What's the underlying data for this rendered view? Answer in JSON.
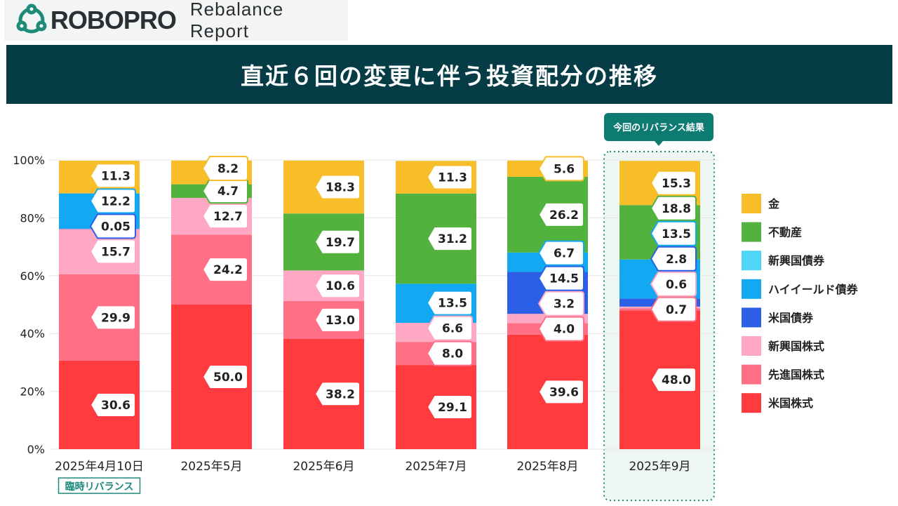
{
  "brand": {
    "name": "ROBOPRO",
    "subtitle": "Rebalance Report"
  },
  "title": "直近６回の変更に伴う投資配分の推移",
  "callout": "今回のリバランス結果",
  "note": "臨時リバランス",
  "colors": {
    "header_bg": "#063c45",
    "accent_teal": "#1d8a7a",
    "highlight_bg": "#eef6f1"
  },
  "chart_data": {
    "type": "bar",
    "stacked": true,
    "categories": [
      "2025年4月10日",
      "2025年5月",
      "2025年6月",
      "2025年7月",
      "2025年8月",
      "2025年9月"
    ],
    "ylim": [
      0,
      100
    ],
    "yticks": [
      "0%",
      "20%",
      "40%",
      "60%",
      "80%",
      "100%"
    ],
    "grid": true,
    "legend_position": "right",
    "series": [
      {
        "name": "米国株式",
        "color": "#ff3b3f",
        "values": [
          30.6,
          50.0,
          38.2,
          29.1,
          39.6,
          48.0
        ]
      },
      {
        "name": "先進国株式",
        "color": "#ff6f86",
        "values": [
          29.9,
          24.2,
          13.0,
          8.0,
          4.0,
          0.7
        ]
      },
      {
        "name": "新興国株式",
        "color": "#ffa8c3",
        "values": [
          15.7,
          12.7,
          10.6,
          6.6,
          3.2,
          0.6
        ]
      },
      {
        "name": "米国債券",
        "color": "#2a5fe6",
        "values": [
          0.05,
          0,
          0,
          0,
          14.5,
          2.8
        ]
      },
      {
        "name": "ハイイールド債券",
        "color": "#12a8f2",
        "values": [
          12.2,
          0,
          0,
          13.5,
          6.7,
          13.5
        ]
      },
      {
        "name": "新興国債券",
        "color": "#4fd6f7",
        "values": [
          0,
          0,
          0,
          0,
          0,
          0
        ]
      },
      {
        "name": "不動産",
        "color": "#52b23e",
        "values": [
          0,
          4.7,
          19.7,
          31.2,
          26.2,
          18.8
        ]
      },
      {
        "name": "金",
        "color": "#f7be2a",
        "values": [
          11.3,
          8.2,
          18.3,
          11.3,
          5.6,
          15.3
        ]
      }
    ],
    "legend_order": [
      "金",
      "不動産",
      "新興国債券",
      "ハイイールド債券",
      "米国債券",
      "新興国株式",
      "先進国株式",
      "米国株式"
    ],
    "labels": [
      [
        [
          "30.6",
          0
        ],
        [
          "29.9",
          1
        ],
        [
          "15.7",
          2
        ],
        [
          "0.05",
          3
        ],
        [
          "12.2",
          4
        ],
        [
          "11.3",
          7
        ]
      ],
      [
        [
          "50.0",
          0
        ],
        [
          "24.2",
          1
        ],
        [
          "12.7",
          2
        ],
        [
          "4.7",
          6
        ],
        [
          "8.2",
          7
        ]
      ],
      [
        [
          "38.2",
          0
        ],
        [
          "13.0",
          1
        ],
        [
          "10.6",
          2
        ],
        [
          "19.7",
          6
        ],
        [
          "18.3",
          7
        ]
      ],
      [
        [
          "29.1",
          0
        ],
        [
          "8.0",
          1
        ],
        [
          "6.6",
          2
        ],
        [
          "13.5",
          4
        ],
        [
          "31.2",
          6
        ],
        [
          "11.3",
          7
        ]
      ],
      [
        [
          "39.6",
          0
        ],
        [
          "4.0",
          1
        ],
        [
          "3.2",
          2
        ],
        [
          "14.5",
          3
        ],
        [
          "6.7",
          4
        ],
        [
          "26.2",
          6
        ],
        [
          "5.6",
          7
        ]
      ],
      [
        [
          "48.0",
          0
        ],
        [
          "0.7",
          1
        ],
        [
          "0.6",
          2
        ],
        [
          "2.8",
          3
        ],
        [
          "13.5",
          4
        ],
        [
          "18.8",
          6
        ],
        [
          "15.3",
          7
        ]
      ]
    ]
  }
}
